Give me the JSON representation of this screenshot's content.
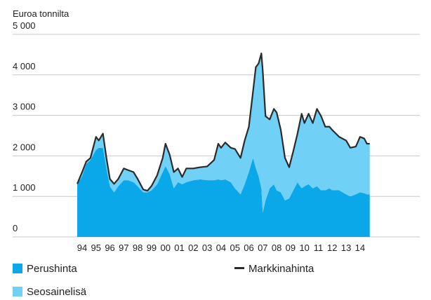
{
  "chart_data": {
    "type": "area",
    "y_label": "Euroa tonnilta",
    "x": [
      1993.65,
      1994.0,
      1994.3,
      1994.6,
      1995.0,
      1995.2,
      1995.5,
      1995.75,
      1996.0,
      1996.3,
      1996.6,
      1997.0,
      1997.3,
      1997.7,
      1998.0,
      1998.4,
      1998.7,
      1999.0,
      1999.4,
      1999.8,
      2000.0,
      2000.3,
      2000.6,
      2000.9,
      2001.2,
      2001.5,
      2002.0,
      2002.5,
      2003.0,
      2003.5,
      2003.8,
      2004.0,
      2004.3,
      2004.7,
      2005.0,
      2005.4,
      2005.7,
      2006.0,
      2006.3,
      2006.5,
      2006.7,
      2006.9,
      2007.0,
      2007.2,
      2007.5,
      2007.8,
      2008.0,
      2008.3,
      2008.6,
      2008.9,
      2009.2,
      2009.5,
      2009.8,
      2010.0,
      2010.3,
      2010.6,
      2010.9,
      2011.2,
      2011.5,
      2011.8,
      2012.0,
      2012.5,
      2013.0,
      2013.3,
      2013.7,
      2014.0,
      2014.3,
      2014.5,
      2014.7
    ],
    "series": [
      {
        "name": "Perushinta",
        "color": "#0aa8e8",
        "values": [
          1300,
          1500,
          1800,
          1900,
          2150,
          2200,
          2200,
          1700,
          1250,
          1100,
          1250,
          1400,
          1400,
          1350,
          1250,
          1100,
          1100,
          1150,
          1300,
          1600,
          1750,
          1550,
          1200,
          1350,
          1300,
          1350,
          1400,
          1420,
          1400,
          1400,
          1420,
          1400,
          1420,
          1350,
          1200,
          1050,
          1300,
          1600,
          1950,
          1700,
          1500,
          1200,
          600,
          900,
          1200,
          1300,
          1150,
          1100,
          900,
          950,
          1150,
          1350,
          1200,
          1250,
          1300,
          1200,
          1250,
          1150,
          1150,
          1200,
          1150,
          1150,
          1050,
          1000,
          1050,
          1100,
          1080,
          1050,
          1050
        ]
      },
      {
        "name": "Seosainelisä",
        "color": "#70d0f5",
        "values": [
          10,
          100,
          60,
          50,
          320,
          180,
          350,
          250,
          180,
          210,
          180,
          290,
          250,
          250,
          180,
          70,
          40,
          110,
          220,
          350,
          550,
          480,
          400,
          340,
          180,
          340,
          290,
          300,
          340,
          500,
          880,
          800,
          910,
          850,
          970,
          900,
          1080,
          1120,
          1640,
          2490,
          2780,
          3330,
          3500,
          2080,
          1700,
          1860,
          1920,
          1540,
          1050,
          770,
          970,
          1200,
          1840,
          1560,
          1740,
          1610,
          1910,
          1830,
          1570,
          1520,
          1490,
          1320,
          1330,
          1200,
          1180,
          1370,
          1350,
          1250,
          1250
        ]
      },
      {
        "name": "Markkinahinta",
        "color": "#2b2b2b",
        "type": "line",
        "values": [
          1310,
          1600,
          1860,
          1950,
          2470,
          2380,
          2550,
          1950,
          1430,
          1310,
          1430,
          1690,
          1650,
          1600,
          1430,
          1170,
          1140,
          1260,
          1520,
          1950,
          2300,
          2030,
          1600,
          1690,
          1480,
          1690,
          1690,
          1720,
          1740,
          1900,
          2300,
          2200,
          2330,
          2200,
          2170,
          1950,
          2380,
          2720,
          3590,
          4190,
          4280,
          4530,
          4100,
          2980,
          2900,
          3160,
          3070,
          2640,
          1950,
          1720,
          2120,
          2550,
          3040,
          2810,
          3040,
          2810,
          3160,
          2980,
          2720,
          2720,
          2640,
          2470,
          2380,
          2200,
          2230,
          2470,
          2430,
          2300,
          2300
        ]
      }
    ],
    "ylim": [
      0,
      5000
    ],
    "yticks": [
      0,
      {
        "value": 1000,
        "label": "1 000"
      },
      {
        "value": 2000,
        "label": "2 000"
      },
      {
        "value": 3000,
        "label": "3 000"
      },
      {
        "value": 4000,
        "label": "4 000"
      },
      {
        "value": 5000,
        "label": "5 000"
      }
    ],
    "xlim": [
      1989,
      2018.3
    ],
    "xticks": [
      {
        "value": 1994,
        "label": "94"
      },
      {
        "value": 1995,
        "label": "95"
      },
      {
        "value": 1996,
        "label": "96"
      },
      {
        "value": 1997,
        "label": "97"
      },
      {
        "value": 1998,
        "label": "98"
      },
      {
        "value": 1999,
        "label": "99"
      },
      {
        "value": 2000,
        "label": "00"
      },
      {
        "value": 2001,
        "label": "01"
      },
      {
        "value": 2002,
        "label": "02"
      },
      {
        "value": 2003,
        "label": "03"
      },
      {
        "value": 2004,
        "label": "04"
      },
      {
        "value": 2005,
        "label": "05"
      },
      {
        "value": 2006,
        "label": "06"
      },
      {
        "value": 2007,
        "label": "07"
      },
      {
        "value": 2008,
        "label": "08"
      },
      {
        "value": 2009,
        "label": "09"
      },
      {
        "value": 2010,
        "label": "10"
      },
      {
        "value": 2011,
        "label": "11"
      },
      {
        "value": 2012,
        "label": "12"
      },
      {
        "value": 2013,
        "label": "13"
      },
      {
        "value": 2014,
        "label": "14"
      }
    ],
    "grid": true
  }
}
